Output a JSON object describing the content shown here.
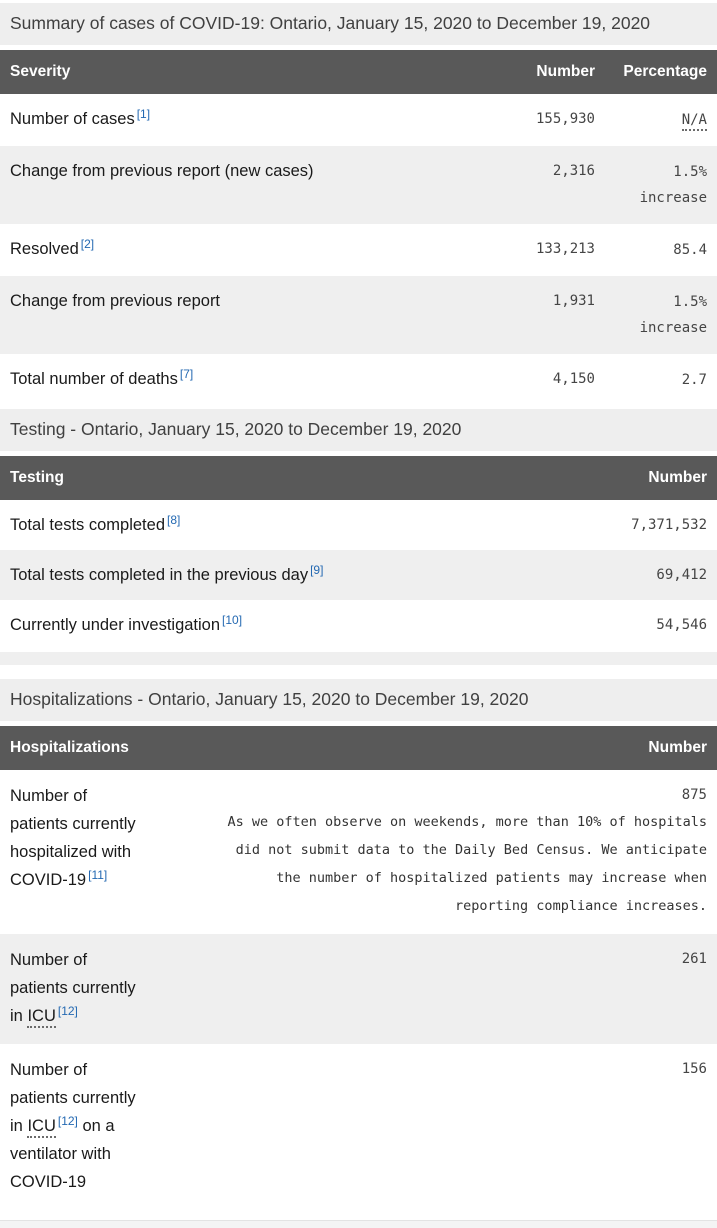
{
  "summary": {
    "title": "Summary of cases of COVID-19: Ontario, January 15, 2020 to December 19, 2020",
    "columns": {
      "severity": "Severity",
      "number": "Number",
      "percentage": "Percentage"
    },
    "rows": [
      {
        "label": "Number of cases",
        "footnote": "[1]",
        "number": "155,930",
        "pct": "N/A"
      },
      {
        "label": "Change from previous report (new cases)",
        "number": "2,316",
        "pct_line1": "1.5%",
        "pct_line2": "increase"
      },
      {
        "label": "Resolved",
        "footnote": "[2]",
        "number": "133,213",
        "pct": "85.4"
      },
      {
        "label": "Change from previous report",
        "number": "1,931",
        "pct_line1": "1.5%",
        "pct_line2": "increase"
      },
      {
        "label": "Total number of deaths",
        "footnote": "[7]",
        "number": "4,150",
        "pct": "2.7"
      }
    ]
  },
  "testing": {
    "title": "Testing - Ontario, January 15, 2020 to December 19, 2020",
    "columns": {
      "testing": "Testing",
      "number": "Number"
    },
    "rows": [
      {
        "label": "Total tests completed",
        "footnote": "[8]",
        "number": "7,371,532"
      },
      {
        "label": "Total tests completed in the previous day",
        "footnote": "[9]",
        "number": "69,412"
      },
      {
        "label": "Currently under investigation",
        "footnote": "[10]",
        "number": "54,546"
      }
    ]
  },
  "hospitalizations": {
    "title": "Hospitalizations - Ontario, January 15, 2020 to December 19, 2020",
    "columns": {
      "hospitalizations": "Hospitalizations",
      "number": "Number"
    },
    "rows": [
      {
        "label": "Number of patients currently hospitalized with COVID-19",
        "footnote": "[11]",
        "number": "875",
        "note": "As we often observe on weekends, more than 10% of hospitals did not submit data to the Daily Bed Census. We anticipate the number of hospitalized patients may increase when reporting compliance increases."
      },
      {
        "label_pre": "Number of patients currently in ",
        "abbr": "ICU",
        "footnote": "[12]",
        "number": "261"
      },
      {
        "label_pre": "Number of patients currently in ",
        "abbr": "ICU",
        "footnote": "[12]",
        "label_post": " on a ventilator with COVID-19",
        "number": "156"
      }
    ]
  },
  "colors": {
    "caption_bg": "#eeeeee",
    "header_bg": "#595959",
    "stripe_bg": "#efefef",
    "link_blue": "#2469b2"
  }
}
